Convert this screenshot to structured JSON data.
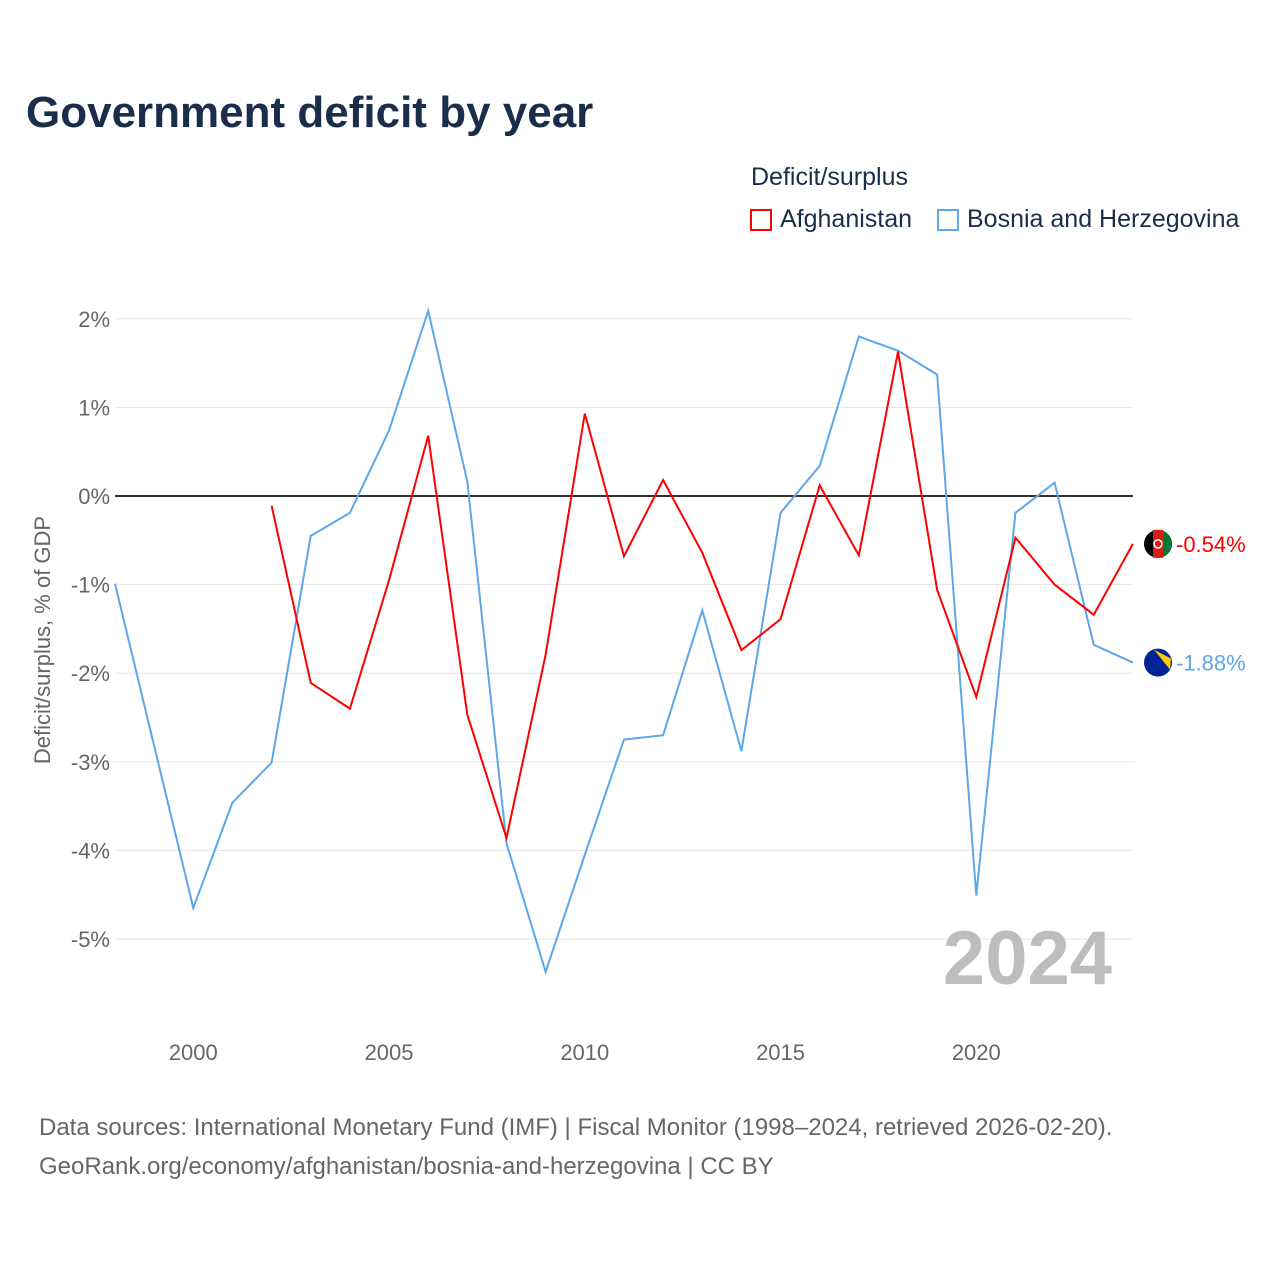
{
  "chart_data": {
    "type": "line",
    "title": "Government deficit by year",
    "ylabel": "Deficit/surplus, % of GDP",
    "xlabel": "",
    "ylim": [
      -5.8,
      2.3
    ],
    "xlim": [
      1998,
      2024
    ],
    "yticks": [
      "2%",
      "1%",
      "0%",
      "-1%",
      "-2%",
      "-3%",
      "-4%",
      "-5%"
    ],
    "ytick_values": [
      2,
      1,
      0,
      -1,
      -2,
      -3,
      -4,
      -5
    ],
    "xticks": [
      "2000",
      "2005",
      "2010",
      "2015",
      "2020"
    ],
    "xtick_values": [
      2000,
      2005,
      2010,
      2015,
      2020
    ],
    "legend_title": "Deficit/surplus",
    "legend_position": "top-right",
    "year_watermark": "2024",
    "series": [
      {
        "name": "Afghanistan",
        "color": "#ff0000",
        "end_label": "-0.54%",
        "x": [
          2002,
          2003,
          2004,
          2005,
          2006,
          2007,
          2008,
          2009,
          2010,
          2011,
          2012,
          2013,
          2014,
          2015,
          2016,
          2017,
          2018,
          2019,
          2020,
          2021,
          2022,
          2023,
          2024
        ],
        "values": [
          -0.11,
          -2.11,
          -2.4,
          -0.95,
          0.68,
          -2.47,
          -3.86,
          -1.79,
          0.93,
          -0.68,
          0.18,
          -0.64,
          -1.74,
          -1.39,
          0.12,
          -0.67,
          1.63,
          -1.06,
          -2.27,
          -0.47,
          -1.0,
          -1.34,
          -0.54
        ]
      },
      {
        "name": "Bosnia and Herzegovina",
        "color": "#5ba7ea",
        "end_label": "-1.88%",
        "x": [
          1998,
          1999,
          2000,
          2001,
          2002,
          2003,
          2004,
          2005,
          2006,
          2007,
          2008,
          2009,
          2010,
          2011,
          2012,
          2013,
          2014,
          2015,
          2016,
          2017,
          2018,
          2019,
          2020,
          2021,
          2022,
          2023,
          2024
        ],
        "values": [
          -0.99,
          -2.82,
          -4.65,
          -3.46,
          -3.01,
          -0.45,
          -0.19,
          0.74,
          2.09,
          0.16,
          -3.92,
          -5.37,
          -4.05,
          -2.75,
          -2.7,
          -1.29,
          -2.88,
          -0.19,
          0.34,
          1.8,
          1.64,
          1.37,
          -4.51,
          -0.19,
          0.15,
          -1.68,
          -1.88
        ]
      }
    ]
  },
  "source_line1": "Data sources: International Monetary Fund (IMF) | Fiscal Monitor (1998–2024, retrieved 2026-02-20).",
  "source_line2": "GeoRank.org/economy/afghanistan/bosnia-and-herzegovina | CC BY"
}
